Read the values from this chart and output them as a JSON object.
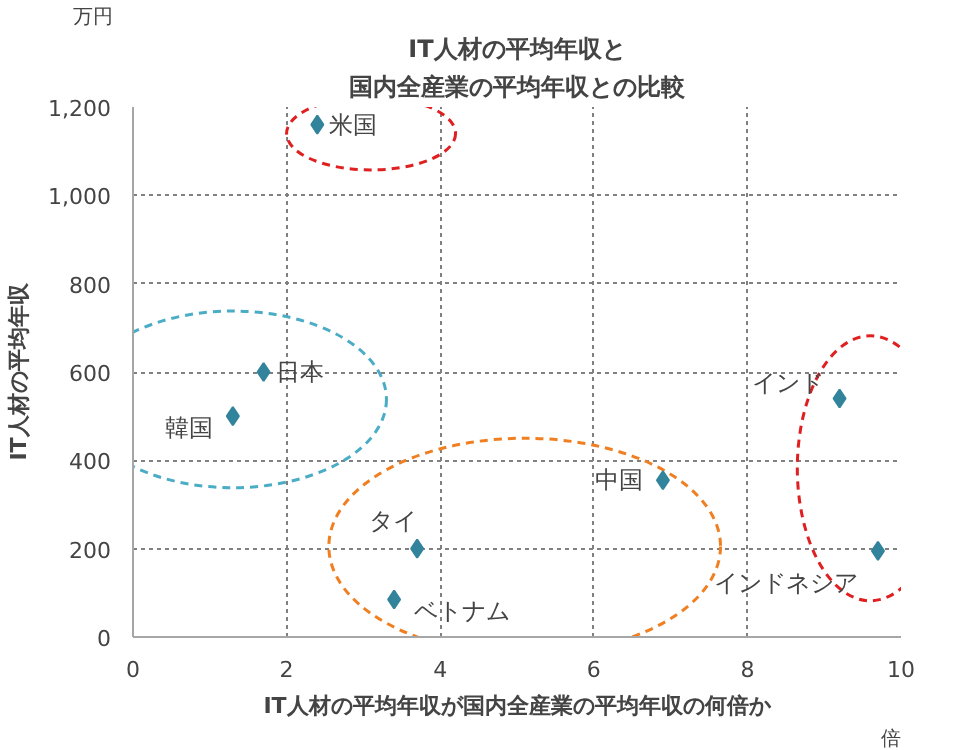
{
  "chart_data": {
    "type": "scatter",
    "title": "IT人材の平均年収と",
    "subtitle": "国内全産業の平均年収との比較",
    "xlabel": "IT人材の平均年収が国内全産業の平均年収の何倍か",
    "ylabel": "IT人材の平均年収",
    "x": [
      2.4,
      1.7,
      1.3,
      9.2,
      9.7,
      6.9,
      3.7,
      3.4
    ],
    "series": [
      {
        "color": "#31849b",
        "values": [
          1160,
          600,
          500,
          540,
          195,
          355,
          200,
          85
        ]
      }
    ],
    "annotations": [
      {
        "text": "米国",
        "x": 2.4,
        "y": 1160
      },
      {
        "text": "日本",
        "x": 1.7,
        "y": 600
      },
      {
        "text": "韓国",
        "x": 1.3,
        "y": 500
      },
      {
        "text": "インド",
        "x": 9.2,
        "y": 540
      },
      {
        "text": "インドネシア",
        "x": 9.7,
        "y": 195
      },
      {
        "text": "中国",
        "x": 6.9,
        "y": 355
      },
      {
        "text": "タイ",
        "x": 3.7,
        "y": 200
      },
      {
        "text": "ベトナム",
        "x": 3.4,
        "y": 85
      },
      "万円",
      "倍"
    ],
    "xlim": [
      0,
      10
    ],
    "ylim": [
      0,
      1200
    ],
    "xticks": [
      0,
      2,
      4,
      6,
      8,
      10
    ],
    "yticks": [
      0,
      200,
      400,
      600,
      800,
      {
        "value": 1000,
        "label": "1,000"
      },
      {
        "value": 1200,
        "label": "1,200"
      }
    ],
    "grid": true,
    "marker": "diamond"
  }
}
